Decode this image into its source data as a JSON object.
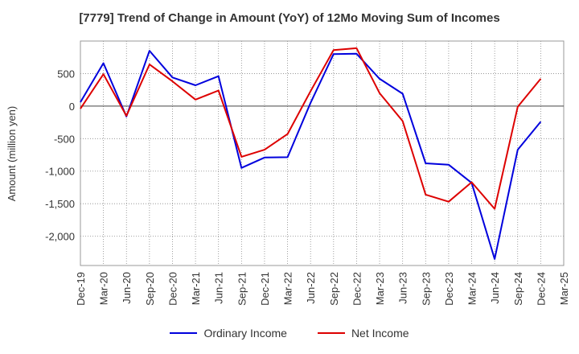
{
  "chart_data": {
    "type": "line",
    "title": "[7779]  Trend of Change in Amount (YoY) of 12Mo Moving Sum of Incomes",
    "ylabel": "Amount (million yen)",
    "xlabel": "",
    "ylim": [
      -2450,
      1000
    ],
    "yticks": [
      500,
      0,
      -500,
      -1000,
      -1500,
      -2000
    ],
    "ytick_labels": [
      "500",
      "0",
      "-500",
      "-1,000",
      "-1,500",
      "-2,000"
    ],
    "categories": [
      "Dec-19",
      "Mar-20",
      "Jun-20",
      "Sep-20",
      "Dec-20",
      "Mar-21",
      "Jun-21",
      "Sep-21",
      "Dec-21",
      "Mar-22",
      "Jun-22",
      "Sep-22",
      "Dec-22",
      "Mar-23",
      "Jun-23",
      "Sep-23",
      "Dec-23",
      "Mar-24",
      "Jun-24",
      "Sep-24",
      "Dec-24",
      "Mar-25"
    ],
    "series": [
      {
        "name": "Ordinary Income",
        "color": "#0000dd",
        "values": [
          60,
          660,
          -160,
          850,
          440,
          320,
          460,
          -950,
          -790,
          -785,
          50,
          800,
          805,
          420,
          190,
          -880,
          -900,
          -1180,
          -2350,
          -670,
          -240,
          null
        ]
      },
      {
        "name": "Net Income",
        "color": "#dd0000",
        "values": [
          -40,
          490,
          -150,
          640,
          380,
          100,
          240,
          -780,
          -670,
          -430,
          230,
          860,
          890,
          200,
          -230,
          -1360,
          -1470,
          -1170,
          -1580,
          -10,
          420,
          null
        ]
      }
    ],
    "grid": true,
    "legend_position": "bottom"
  }
}
